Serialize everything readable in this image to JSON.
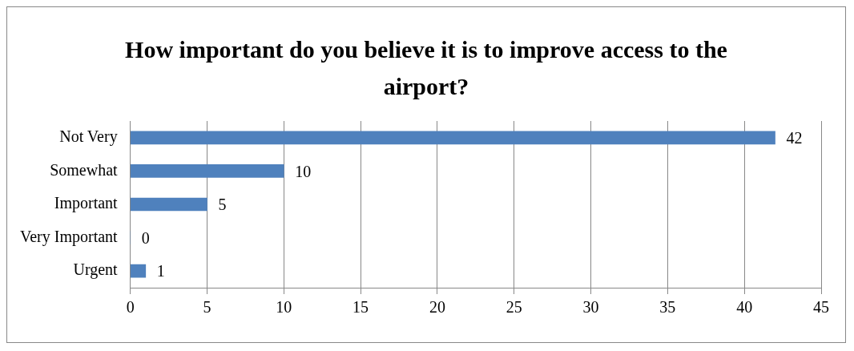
{
  "chart_data": {
    "type": "bar",
    "orientation": "horizontal",
    "title": "How important do you believe it is to improve access to the airport?",
    "categories": [
      "Not Very",
      "Somewhat",
      "Important",
      "Very Important",
      "Urgent"
    ],
    "values": [
      42,
      10,
      5,
      0,
      1
    ],
    "color": "#4f81bd",
    "xlim": [
      0,
      45
    ],
    "xticks": [
      0,
      5,
      10,
      15,
      20,
      25,
      30,
      35,
      40,
      45
    ],
    "grid": "x",
    "data_labels": true,
    "legend": false
  }
}
